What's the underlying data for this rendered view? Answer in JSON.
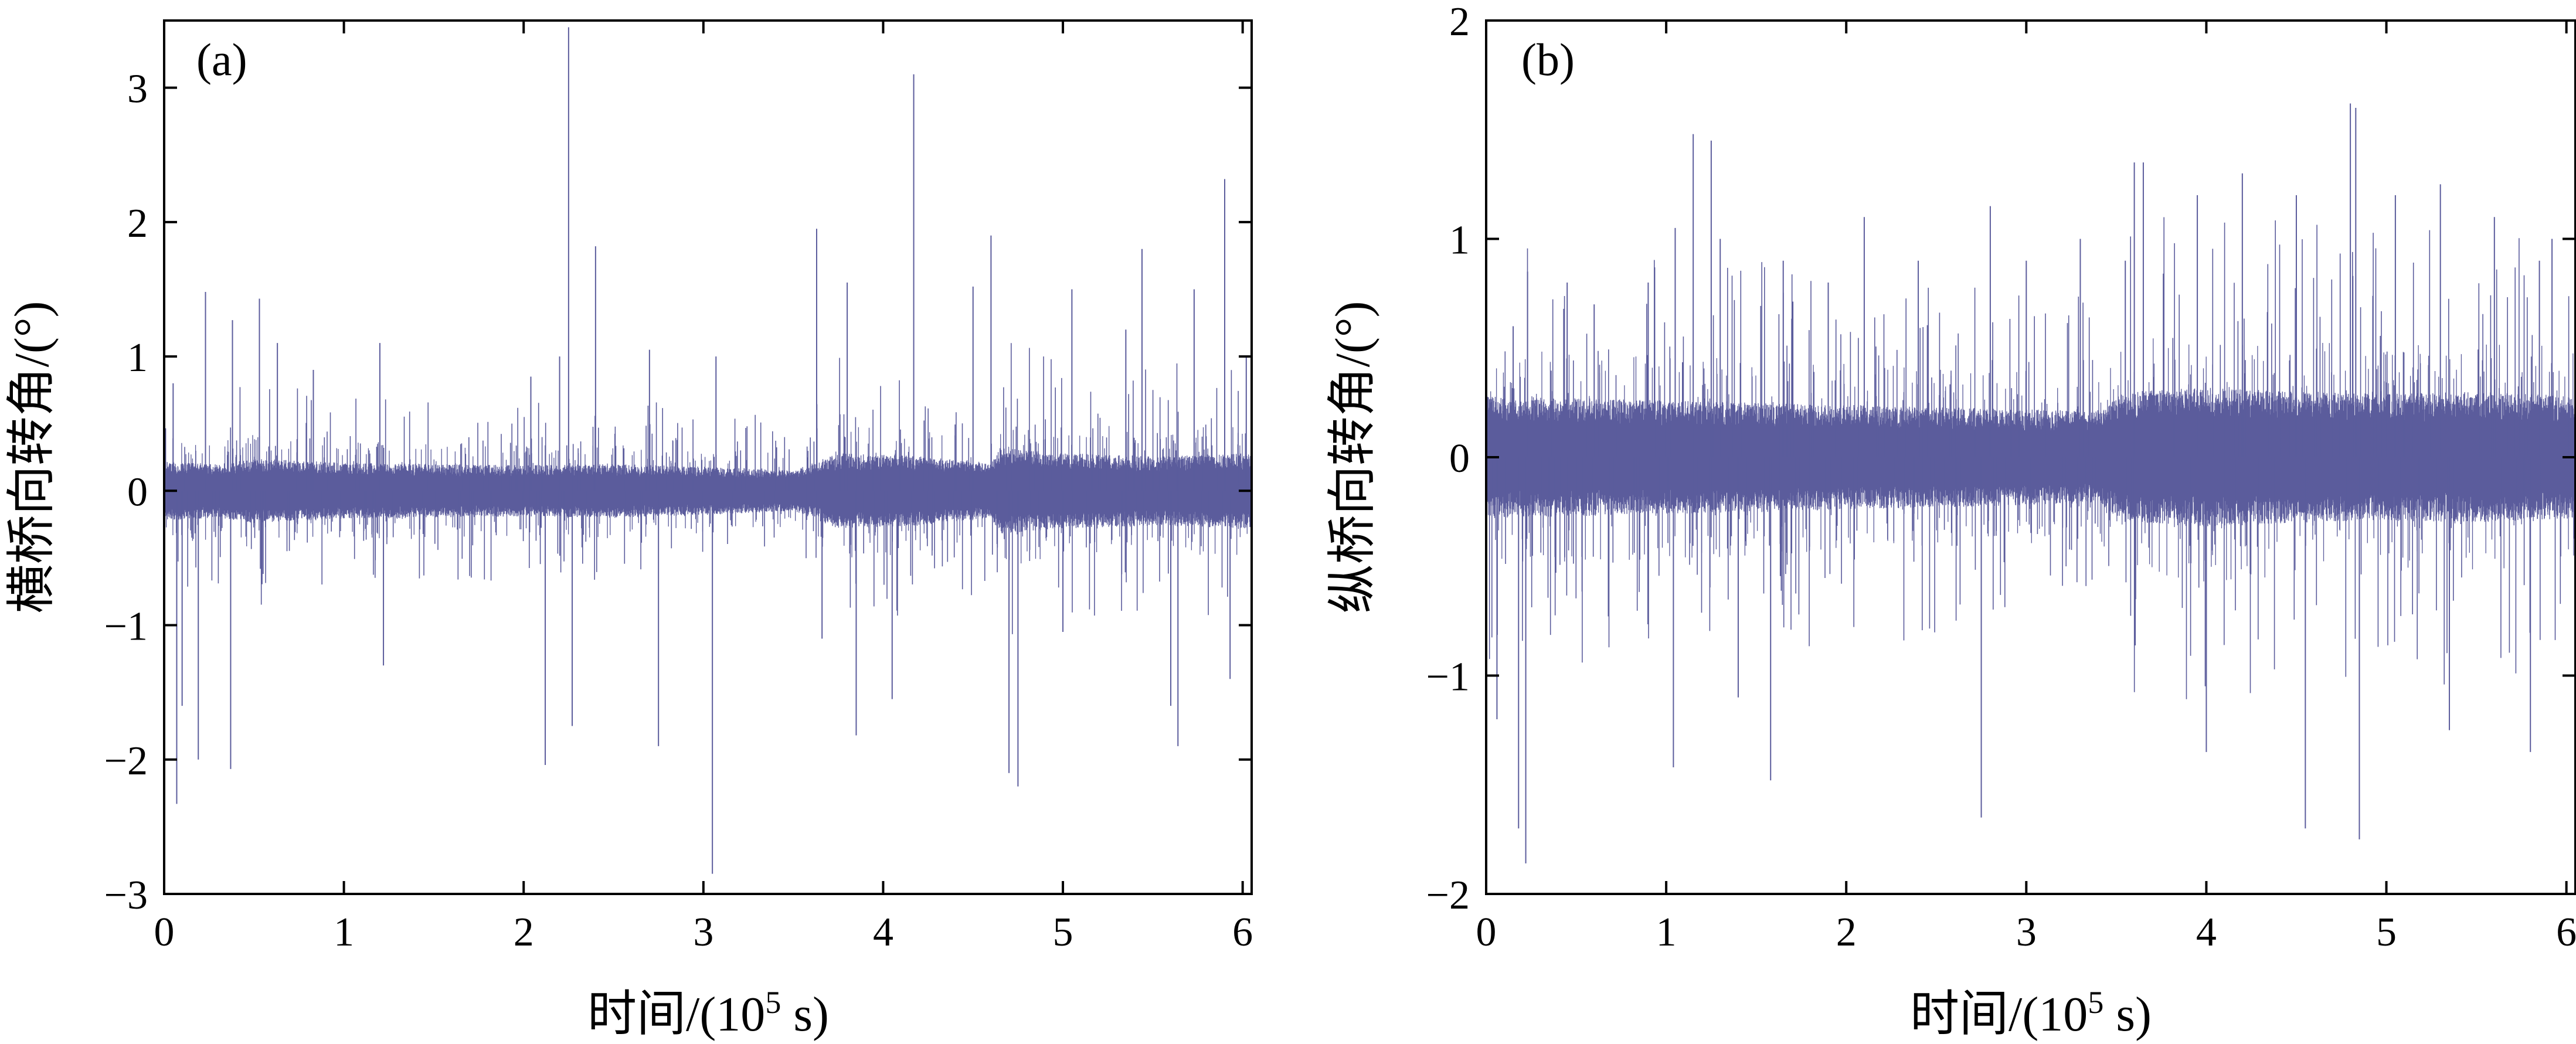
{
  "chart_data": [
    {
      "type": "line",
      "panel_label": "(a)",
      "xlabel_main": "时间/(10",
      "xlabel_sup": "5",
      "xlabel_end": " s)",
      "ylabel": "横桥向转角/(°)",
      "xlim": [
        0,
        6.05
      ],
      "ylim": [
        -3,
        3.5
      ],
      "xticks": [
        0,
        1,
        2,
        3,
        4,
        5,
        6
      ],
      "xtick_labels": [
        "0",
        "1",
        "2",
        "3",
        "4",
        "5",
        "6"
      ],
      "yticks": [
        -3,
        -2,
        -1,
        0,
        1,
        2,
        3
      ],
      "ytick_labels": [
        "−3",
        "−2",
        "−1",
        "0",
        "1",
        "2",
        "3"
      ],
      "series": [
        {
          "name": "横桥向转角",
          "color": "#5b5c9c",
          "noise_band": [
            {
              "x": 0.0,
              "amp": 0.22
            },
            {
              "x": 0.3,
              "amp": 0.2
            },
            {
              "x": 0.5,
              "amp": 0.24
            },
            {
              "x": 1.0,
              "amp": 0.21
            },
            {
              "x": 1.5,
              "amp": 0.2
            },
            {
              "x": 2.0,
              "amp": 0.19
            },
            {
              "x": 2.5,
              "amp": 0.2
            },
            {
              "x": 3.0,
              "amp": 0.18
            },
            {
              "x": 3.5,
              "amp": 0.15
            },
            {
              "x": 3.75,
              "amp": 0.28
            },
            {
              "x": 4.2,
              "amp": 0.26
            },
            {
              "x": 4.6,
              "amp": 0.2
            },
            {
              "x": 4.65,
              "amp": 0.32
            },
            {
              "x": 5.0,
              "amp": 0.28
            },
            {
              "x": 5.5,
              "amp": 0.26
            },
            {
              "x": 6.05,
              "amp": 0.28
            }
          ],
          "peaks": [
            {
              "x": 0.05,
              "y": 0.8
            },
            {
              "x": 0.07,
              "y": -2.33
            },
            {
              "x": 0.1,
              "y": -1.6
            },
            {
              "x": 0.19,
              "y": -2.0
            },
            {
              "x": 0.23,
              "y": 1.48
            },
            {
              "x": 0.37,
              "y": -2.07
            },
            {
              "x": 0.38,
              "y": 1.27
            },
            {
              "x": 0.53,
              "y": 1.43
            },
            {
              "x": 0.63,
              "y": 1.1
            },
            {
              "x": 0.83,
              "y": 0.9
            },
            {
              "x": 1.2,
              "y": 1.1
            },
            {
              "x": 1.22,
              "y": -1.3
            },
            {
              "x": 2.04,
              "y": 0.85
            },
            {
              "x": 2.12,
              "y": -2.04
            },
            {
              "x": 2.2,
              "y": 1.0
            },
            {
              "x": 2.25,
              "y": 3.45
            },
            {
              "x": 2.27,
              "y": -1.75
            },
            {
              "x": 2.4,
              "y": 1.82
            },
            {
              "x": 2.7,
              "y": 1.05
            },
            {
              "x": 2.75,
              "y": -1.9
            },
            {
              "x": 3.05,
              "y": -2.85
            },
            {
              "x": 3.07,
              "y": 1.0
            },
            {
              "x": 3.63,
              "y": 1.95
            },
            {
              "x": 3.66,
              "y": -1.1
            },
            {
              "x": 3.8,
              "y": 1.55
            },
            {
              "x": 3.85,
              "y": -1.82
            },
            {
              "x": 4.05,
              "y": -1.55
            },
            {
              "x": 4.17,
              "y": 3.1
            },
            {
              "x": 4.5,
              "y": 1.52
            },
            {
              "x": 4.6,
              "y": 1.9
            },
            {
              "x": 4.7,
              "y": -2.1
            },
            {
              "x": 4.75,
              "y": -2.2
            },
            {
              "x": 5.0,
              "y": -1.05
            },
            {
              "x": 5.05,
              "y": 1.5
            },
            {
              "x": 5.35,
              "y": 1.2
            },
            {
              "x": 5.44,
              "y": 1.8
            },
            {
              "x": 5.6,
              "y": -1.6
            },
            {
              "x": 5.64,
              "y": -1.9
            },
            {
              "x": 5.73,
              "y": 1.5
            },
            {
              "x": 5.9,
              "y": 2.32
            },
            {
              "x": 5.93,
              "y": -1.4
            },
            {
              "x": 6.02,
              "y": 1.0
            }
          ]
        }
      ]
    },
    {
      "type": "line",
      "panel_label": "(b)",
      "xlabel_main": "时间/(10",
      "xlabel_sup": "5",
      "xlabel_end": " s)",
      "ylabel": "纵桥向转角/(°)",
      "xlim": [
        0,
        6.05
      ],
      "ylim": [
        -2,
        2
      ],
      "xticks": [
        0,
        1,
        2,
        3,
        4,
        5,
        6
      ],
      "xtick_labels": [
        "0",
        "1",
        "2",
        "3",
        "4",
        "5",
        "6"
      ],
      "yticks": [
        -2,
        -1,
        0,
        1,
        2
      ],
      "ytick_labels": [
        "−2",
        "−1",
        "0",
        "1",
        "2"
      ],
      "series": [
        {
          "name": "纵桥向转角",
          "color": "#5b5c9c",
          "noise_band": [
            {
              "x": 0.0,
              "amp": 0.28
            },
            {
              "x": 0.5,
              "amp": 0.27
            },
            {
              "x": 1.0,
              "amp": 0.26
            },
            {
              "x": 1.5,
              "amp": 0.25
            },
            {
              "x": 2.0,
              "amp": 0.24
            },
            {
              "x": 2.5,
              "amp": 0.23
            },
            {
              "x": 3.0,
              "amp": 0.22
            },
            {
              "x": 3.4,
              "amp": 0.21
            },
            {
              "x": 3.55,
              "amp": 0.3
            },
            {
              "x": 4.0,
              "amp": 0.32
            },
            {
              "x": 4.5,
              "amp": 0.3
            },
            {
              "x": 5.0,
              "amp": 0.29
            },
            {
              "x": 5.5,
              "amp": 0.3
            },
            {
              "x": 6.05,
              "amp": 0.28
            }
          ],
          "peaks": [
            {
              "x": 0.06,
              "y": -1.2
            },
            {
              "x": 0.15,
              "y": 0.6
            },
            {
              "x": 0.18,
              "y": -1.7
            },
            {
              "x": 0.22,
              "y": -1.86
            },
            {
              "x": 0.23,
              "y": 0.85
            },
            {
              "x": 0.45,
              "y": 0.8
            },
            {
              "x": 0.6,
              "y": 0.7
            },
            {
              "x": 0.9,
              "y": 0.8
            },
            {
              "x": 1.04,
              "y": -1.42
            },
            {
              "x": 1.05,
              "y": 1.05
            },
            {
              "x": 1.15,
              "y": 1.48
            },
            {
              "x": 1.25,
              "y": 1.45
            },
            {
              "x": 1.3,
              "y": 1.0
            },
            {
              "x": 1.4,
              "y": -1.1
            },
            {
              "x": 1.58,
              "y": -1.48
            },
            {
              "x": 1.65,
              "y": 0.9
            },
            {
              "x": 1.9,
              "y": 0.8
            },
            {
              "x": 2.1,
              "y": 1.1
            },
            {
              "x": 2.4,
              "y": 0.9
            },
            {
              "x": 2.75,
              "y": -1.65
            },
            {
              "x": 2.8,
              "y": 1.15
            },
            {
              "x": 3.0,
              "y": 0.9
            },
            {
              "x": 3.3,
              "y": 1.0
            },
            {
              "x": 3.55,
              "y": 0.9
            },
            {
              "x": 3.6,
              "y": 1.35
            },
            {
              "x": 3.65,
              "y": 1.35
            },
            {
              "x": 3.95,
              "y": 1.2
            },
            {
              "x": 4.0,
              "y": -1.35
            },
            {
              "x": 4.2,
              "y": 1.3
            },
            {
              "x": 4.5,
              "y": 1.2
            },
            {
              "x": 4.55,
              "y": -1.7
            },
            {
              "x": 4.8,
              "y": 1.62
            },
            {
              "x": 4.83,
              "y": 1.6
            },
            {
              "x": 4.85,
              "y": -1.75
            },
            {
              "x": 5.05,
              "y": 1.2
            },
            {
              "x": 5.3,
              "y": 1.25
            },
            {
              "x": 5.35,
              "y": -1.25
            },
            {
              "x": 5.6,
              "y": 1.1
            },
            {
              "x": 5.8,
              "y": -1.35
            },
            {
              "x": 5.85,
              "y": 0.9
            },
            {
              "x": 5.92,
              "y": 1.0
            }
          ]
        }
      ]
    }
  ]
}
